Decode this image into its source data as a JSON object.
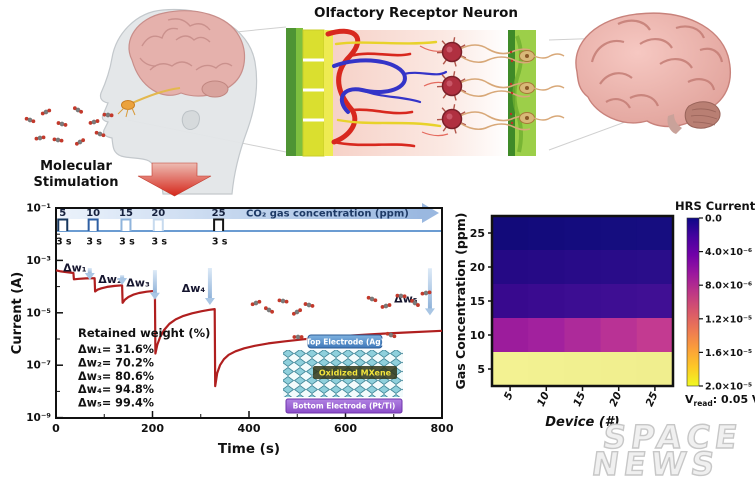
{
  "illustration": {
    "molecular_stimulation_line1": "Molecular",
    "molecular_stimulation_line2": "Stimulation",
    "neuron_title": "Olfactory Receptor Neuron"
  },
  "watermark": {
    "line1": "SPACE",
    "line2": "NEWS"
  },
  "chart_data": [
    {
      "type": "line",
      "title": "",
      "xlabel": "Time (s)",
      "ylabel": "Current (A)",
      "xlim": [
        0,
        800
      ],
      "x_ticks": [
        0,
        200,
        400,
        600,
        800
      ],
      "x_minor_ticks": [
        100,
        300,
        500,
        700
      ],
      "y_scale": "log",
      "ylim_log": [
        -9,
        -1
      ],
      "y_tick_logs": [
        -1,
        -3,
        -5,
        -7,
        -9
      ],
      "y_ticks": [
        "10⁻¹",
        "10⁻³",
        "10⁻⁵",
        "10⁻⁷",
        "10⁻⁹"
      ],
      "y_minor_logs": [
        -2,
        -4,
        -6,
        -8
      ],
      "grid": false,
      "series": [
        {
          "name": "HRS current response",
          "color": "#b01f1f",
          "points": [
            [
              0,
              0.00042
            ],
            [
              10,
              0.00038
            ],
            [
              24,
              0.00035
            ],
            [
              36,
              0.00033
            ],
            [
              37,
              0.00019
            ],
            [
              48,
              0.000198
            ],
            [
              62,
              0.000205
            ],
            [
              80,
              0.00021
            ],
            [
              81,
              6.5e-05
            ],
            [
              86,
              7.6e-05
            ],
            [
              94,
              8.6e-05
            ],
            [
              106,
              9.7e-05
            ],
            [
              122,
              0.000106
            ],
            [
              137,
              0.000112
            ],
            [
              138,
              2.4e-05
            ],
            [
              143,
              3.2e-05
            ],
            [
              150,
              4e-05
            ],
            [
              160,
              4.9e-05
            ],
            [
              172,
              5.7e-05
            ],
            [
              188,
              6.4e-05
            ],
            [
              205,
              6.9e-05
            ],
            [
              206,
              2.8e-07
            ],
            [
              210,
              6e-07
            ],
            [
              216,
              1.2e-06
            ],
            [
              224,
              2.2e-06
            ],
            [
              235,
              3.8e-06
            ],
            [
              248,
              5.6e-06
            ],
            [
              264,
              7.6e-06
            ],
            [
              282,
              9.6e-06
            ],
            [
              302,
              1.15e-05
            ],
            [
              318,
              1.3e-05
            ],
            [
              329,
              1.38e-05
            ],
            [
              330,
              1.6e-08
            ],
            [
              334,
              5e-08
            ],
            [
              340,
              1e-07
            ],
            [
              348,
              1.7e-07
            ],
            [
              358,
              2.5e-07
            ],
            [
              372,
              3.4e-07
            ],
            [
              390,
              4.4e-07
            ],
            [
              412,
              5.5e-07
            ],
            [
              440,
              6.8e-07
            ],
            [
              475,
              8.2e-07
            ],
            [
              515,
              9.8e-07
            ],
            [
              560,
              1.15e-06
            ],
            [
              610,
              1.35e-06
            ],
            [
              665,
              1.55e-06
            ],
            [
              720,
              1.75e-06
            ],
            [
              800,
              2.05e-06
            ]
          ]
        }
      ],
      "pulse_train": {
        "label": "CO₂ gas concentration (ppm)",
        "label_color": "#1e3a66",
        "pulse_width_label": "3 s",
        "baseline_color": "#3a7cc4",
        "pulses": [
          {
            "ppm": "5",
            "t": 14,
            "color": "#17375e"
          },
          {
            "ppm": "10",
            "t": 77,
            "color": "#2e5fa3"
          },
          {
            "ppm": "15",
            "t": 145,
            "color": "#8fb4dc"
          },
          {
            "ppm": "20",
            "t": 212,
            "color": "#c7daee"
          },
          {
            "ppm": "25",
            "t": 337,
            "color": "#151515"
          }
        ]
      },
      "annotations": {
        "dw_labels": [
          {
            "text": "Δw₁",
            "t": 39,
            "log": -3.42
          },
          {
            "text": "Δw₂",
            "t": 112,
            "log": -3.86
          },
          {
            "text": "Δw₃",
            "t": 170,
            "log": -4.0
          },
          {
            "text": "Δw₄",
            "t": 285,
            "log": -4.2
          },
          {
            "text": "Δw₅",
            "t": 725,
            "log": -4.6
          }
        ],
        "arrows": [
          {
            "t": 70,
            "log_top": -3.29,
            "log_bot": -3.75
          },
          {
            "t": 137,
            "log_top": -3.56,
            "log_bot": -3.94
          },
          {
            "t": 205,
            "log_top": -3.37,
            "log_bot": -4.5
          },
          {
            "t": 319,
            "log_top": -3.29,
            "log_bot": -4.7
          },
          {
            "t": 775,
            "log_top": -3.3,
            "log_bot": -5.1
          }
        ]
      },
      "retained_weight": {
        "title": "Retained weight (%)",
        "lines": [
          "Δw₁= 31.6%",
          "Δw₂= 70.2%",
          "Δw₃= 80.6%",
          "Δw₄= 94.8%",
          "Δw₅= 99.4%"
        ]
      },
      "inset_device": {
        "top_electrode": "Top Electrode (Ag)",
        "middle_layer": "Oxidized MXene",
        "bottom_electrode": "Bottom Electrode (Pt/Ti)"
      }
    },
    {
      "type": "heatmap",
      "xlabel": "Device (#)",
      "ylabel": "Gas Concentration (ppm)",
      "x_ticks": [
        "5",
        "10",
        "15",
        "20",
        "25"
      ],
      "y_ticks": [
        "25",
        "20",
        "15",
        "10",
        "5"
      ],
      "rows": [
        {
          "ppm": 25,
          "approx_value_A": 6e-07,
          "colors": [
            "#120a7a",
            "#130b7c",
            "#140c7e",
            "#150d7f",
            "#160d80"
          ]
        },
        {
          "ppm": 20,
          "approx_value_A": 2e-06,
          "colors": [
            "#250985",
            "#260a86",
            "#280b88",
            "#290c89",
            "#2a0d8a"
          ]
        },
        {
          "ppm": 15,
          "approx_value_A": 3.5e-06,
          "colors": [
            "#38098e",
            "#3a0b90",
            "#3c0d92",
            "#3e0e93",
            "#400f94"
          ]
        },
        {
          "ppm": 10,
          "approx_value_A": 1.1e-05,
          "colors": [
            "#9c1c9c",
            "#a2219e",
            "#ad2a9a",
            "#b93295",
            "#c33a91"
          ]
        },
        {
          "ppm": 5,
          "approx_value_A": 1.9e-05,
          "colors": [
            "#f3f292",
            "#f2f191",
            "#f1f090",
            "#f1ef8f",
            "#f0ee8e"
          ]
        }
      ],
      "colorbar": {
        "title": "HRS Current (A)",
        "ticks": [
          "0.0",
          "4.0×10⁻⁶",
          "8.0×10⁻⁶",
          "1.2×10⁻⁵",
          "1.6×10⁻⁵",
          "2.0×10⁻⁵"
        ],
        "gradient_top_to_bottom": [
          "#0d0887",
          "#46039f",
          "#7201a8",
          "#9c179e",
          "#bd3786",
          "#d8576b",
          "#ed7953",
          "#fb9f3a",
          "#fdc926",
          "#f0f921"
        ]
      },
      "read_voltage": {
        "main": "V",
        "sub": "read",
        "rest": ": 0.05 V"
      }
    }
  ]
}
